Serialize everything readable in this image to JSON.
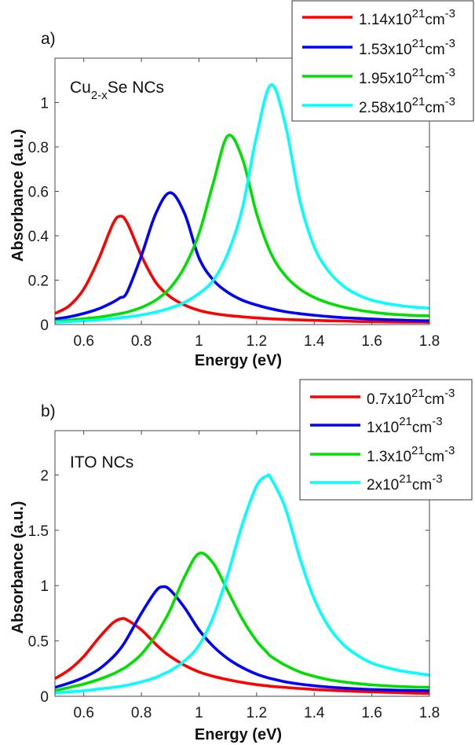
{
  "chart_data": [
    {
      "type": "line",
      "panel_label": "a)",
      "annotation": {
        "main": "Cu",
        "sub": "2-x",
        "rest": "Se NCs"
      },
      "xlabel": "Energy (eV)",
      "ylabel": "Absorbance (a.u.)",
      "xlim": [
        0.5,
        1.8
      ],
      "ylim": [
        0,
        1.2
      ],
      "xticks": [
        0.6,
        0.8,
        1,
        1.2,
        1.4,
        1.6,
        1.8
      ],
      "xtick_labels": [
        "0.6",
        "0.8",
        "1",
        "1.2",
        "1.4",
        "1.6",
        "1.8"
      ],
      "yticks": [
        0,
        0.2,
        0.4,
        0.6,
        0.8,
        1
      ],
      "ytick_labels": [
        "0",
        "0.2",
        "0.4",
        "0.6",
        "0.8",
        "1"
      ],
      "grid": false,
      "legend_position": "top-right",
      "x": [
        0.5,
        0.55,
        0.6,
        0.65,
        0.7,
        0.725,
        0.75,
        0.8,
        0.85,
        0.9,
        0.95,
        1.0,
        1.05,
        1.1,
        1.15,
        1.2,
        1.25,
        1.3,
        1.35,
        1.4,
        1.45,
        1.5,
        1.55,
        1.6,
        1.65,
        1.7,
        1.75,
        1.8
      ],
      "series": [
        {
          "name": "1.14x10^21cm^-3",
          "label_base": "1.14x10",
          "label_exp": "21",
          "label_unit": "cm",
          "label_unit_exp": "-3",
          "color": "#ff0000",
          "values": [
            0.05,
            0.085,
            0.16,
            0.29,
            0.45,
            0.488,
            0.46,
            0.31,
            0.19,
            0.125,
            0.088,
            0.064,
            0.05,
            0.041,
            0.035,
            0.03,
            0.026,
            0.023,
            0.021,
            0.019,
            0.017,
            0.016,
            0.014,
            0.013,
            0.012,
            0.011,
            0.011,
            0.01
          ]
        },
        {
          "name": "1.53x10^21cm^-3",
          "label_base": "1.53x10",
          "label_exp": "21",
          "label_unit": "cm",
          "label_unit_exp": "-3",
          "color": "#0000ff",
          "values": [
            0.025,
            0.035,
            0.05,
            0.07,
            0.1,
            0.12,
            0.145,
            0.31,
            0.5,
            0.594,
            0.5,
            0.3,
            0.2,
            0.145,
            0.11,
            0.088,
            0.071,
            0.058,
            0.049,
            0.042,
            0.036,
            0.031,
            0.028,
            0.025,
            0.022,
            0.02,
            0.018,
            0.017
          ]
        },
        {
          "name": "1.95x10^21cm^-3",
          "label_base": "1.95x10",
          "label_exp": "21",
          "label_unit": "cm",
          "label_unit_exp": "-3",
          "color": "#00e000",
          "values": [
            0.015,
            0.02,
            0.026,
            0.033,
            0.043,
            0.049,
            0.056,
            0.077,
            0.11,
            0.165,
            0.26,
            0.41,
            0.64,
            0.85,
            0.75,
            0.5,
            0.32,
            0.22,
            0.16,
            0.122,
            0.097,
            0.079,
            0.066,
            0.056,
            0.049,
            0.044,
            0.041,
            0.039
          ]
        },
        {
          "name": "2.58x10^21cm^-3",
          "label_base": "2.58x10",
          "label_exp": "21",
          "label_unit": "cm",
          "label_unit_exp": "-3",
          "color": "#00ffff",
          "values": [
            0.01,
            0.013,
            0.017,
            0.021,
            0.027,
            0.03,
            0.034,
            0.043,
            0.056,
            0.074,
            0.1,
            0.14,
            0.2,
            0.32,
            0.52,
            0.85,
            1.08,
            0.9,
            0.56,
            0.35,
            0.24,
            0.175,
            0.135,
            0.11,
            0.095,
            0.085,
            0.078,
            0.074
          ]
        }
      ]
    },
    {
      "type": "line",
      "panel_label": "b)",
      "annotation": {
        "main": "ITO NCs",
        "sub": "",
        "rest": ""
      },
      "xlabel": "Energy (eV)",
      "ylabel": "Absorbance (a.u.)",
      "xlim": [
        0.5,
        1.8
      ],
      "ylim": [
        0,
        2.4
      ],
      "xticks": [
        0.6,
        0.8,
        1,
        1.2,
        1.4,
        1.6,
        1.8
      ],
      "xtick_labels": [
        "0.6",
        "0.8",
        "1",
        "1.2",
        "1.4",
        "1.6",
        "1.8"
      ],
      "yticks": [
        0,
        0.5,
        1,
        1.5,
        2
      ],
      "ytick_labels": [
        "0",
        "0.5",
        "1",
        "1.5",
        "2"
      ],
      "grid": false,
      "legend_position": "top-right",
      "x": [
        0.5,
        0.55,
        0.6,
        0.65,
        0.7,
        0.73,
        0.75,
        0.8,
        0.85,
        0.875,
        0.9,
        0.95,
        1.0,
        1.05,
        1.1,
        1.15,
        1.2,
        1.235,
        1.25,
        1.3,
        1.35,
        1.4,
        1.45,
        1.5,
        1.55,
        1.6,
        1.65,
        1.7,
        1.75,
        1.8
      ],
      "series": [
        {
          "name": "0.7x10^21cm^-3",
          "label_base": "0.7x10",
          "label_exp": "21",
          "label_unit": "cm",
          "label_unit_exp": "-3",
          "color": "#ff0000",
          "values": [
            0.16,
            0.24,
            0.36,
            0.52,
            0.66,
            0.7,
            0.69,
            0.6,
            0.47,
            0.41,
            0.36,
            0.28,
            0.22,
            0.18,
            0.15,
            0.125,
            0.105,
            0.095,
            0.09,
            0.08,
            0.07,
            0.062,
            0.055,
            0.049,
            0.044,
            0.04,
            0.036,
            0.032,
            0.028,
            0.025
          ]
        },
        {
          "name": "1x10^21cm^-3",
          "label_base": "1x10",
          "label_exp": "21",
          "label_unit": "cm",
          "label_unit_exp": "-3",
          "color": "#0000ff",
          "values": [
            0.08,
            0.12,
            0.17,
            0.24,
            0.35,
            0.44,
            0.52,
            0.75,
            0.95,
            0.99,
            0.96,
            0.8,
            0.6,
            0.45,
            0.34,
            0.26,
            0.2,
            0.17,
            0.16,
            0.13,
            0.11,
            0.095,
            0.083,
            0.074,
            0.067,
            0.061,
            0.057,
            0.054,
            0.052,
            0.05
          ]
        },
        {
          "name": "1.3x10^21cm^-3",
          "label_base": "1.3x10",
          "label_exp": "21",
          "label_unit": "cm",
          "label_unit_exp": "-3",
          "color": "#00e000",
          "values": [
            0.05,
            0.08,
            0.11,
            0.15,
            0.2,
            0.24,
            0.27,
            0.38,
            0.55,
            0.66,
            0.78,
            1.08,
            1.29,
            1.2,
            0.95,
            0.7,
            0.5,
            0.4,
            0.36,
            0.28,
            0.22,
            0.18,
            0.15,
            0.13,
            0.115,
            0.103,
            0.094,
            0.088,
            0.083,
            0.08
          ]
        },
        {
          "name": "2x10^21cm^-3",
          "label_base": "2x10",
          "label_exp": "21",
          "label_unit": "cm",
          "label_unit_exp": "-3",
          "color": "#00ffff",
          "values": [
            0.03,
            0.04,
            0.05,
            0.065,
            0.08,
            0.09,
            0.1,
            0.13,
            0.17,
            0.2,
            0.23,
            0.32,
            0.46,
            0.72,
            1.1,
            1.55,
            1.9,
            1.99,
            1.97,
            1.7,
            1.25,
            0.88,
            0.63,
            0.47,
            0.37,
            0.3,
            0.26,
            0.23,
            0.21,
            0.19
          ]
        }
      ]
    }
  ]
}
